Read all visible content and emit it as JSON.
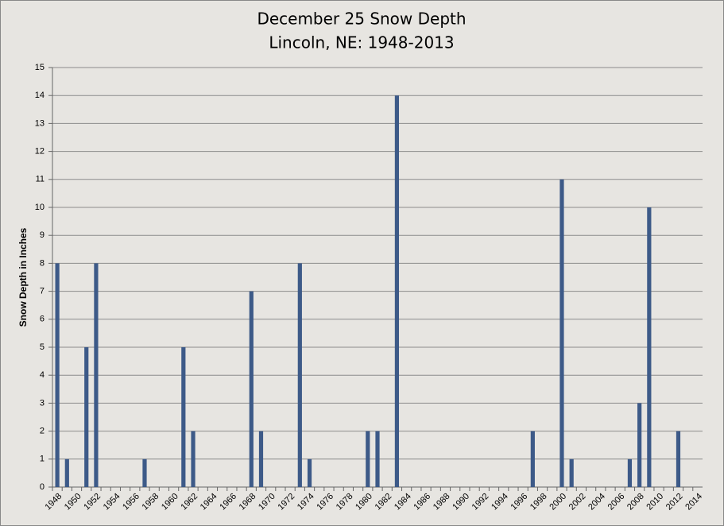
{
  "chart_data": {
    "type": "bar",
    "title": "December 25 Snow Depth",
    "subtitle": "Lincoln, NE:  1948-2013",
    "y_label": "Snow Depth in Inches",
    "categories": [
      "1948",
      null,
      "1950",
      null,
      "1952",
      null,
      "1954",
      null,
      "1956",
      null,
      "1958",
      null,
      "1960",
      null,
      "1962",
      null,
      "1964",
      null,
      "1966",
      null,
      "1968",
      null,
      "1970",
      null,
      "1972",
      null,
      "1974",
      null,
      "1976",
      null,
      "1978",
      null,
      "1980",
      null,
      "1982",
      null,
      "1984",
      null,
      "1986",
      null,
      "1988",
      null,
      "1990",
      null,
      "1992",
      null,
      "1994",
      null,
      "1996",
      null,
      "1998",
      null,
      "2000",
      null,
      "2002",
      null,
      "2004",
      null,
      "2006",
      null,
      "2008",
      null,
      "2010",
      null,
      "2012",
      null,
      "2014"
    ],
    "values": [
      8,
      1,
      0,
      5,
      8,
      0,
      0,
      0,
      0,
      1,
      0,
      0,
      0,
      5,
      2,
      0,
      0,
      0,
      0,
      0,
      7,
      2,
      0,
      0,
      0,
      8,
      1,
      0,
      0,
      0,
      0,
      0,
      2,
      2,
      0,
      14,
      0,
      0,
      0,
      0,
      0,
      0,
      0,
      0,
      0,
      0,
      0,
      0,
      0,
      2,
      0,
      0,
      11,
      1,
      0,
      0,
      0,
      0,
      0,
      1,
      3,
      10,
      0,
      0,
      2,
      0,
      null
    ],
    "color": "#3d5a88",
    "ylim": [
      0,
      15
    ],
    "yticks": [
      0,
      1,
      2,
      3,
      4,
      5,
      6,
      7,
      8,
      9,
      10,
      11,
      12,
      13,
      14,
      15
    ],
    "grid": true
  }
}
